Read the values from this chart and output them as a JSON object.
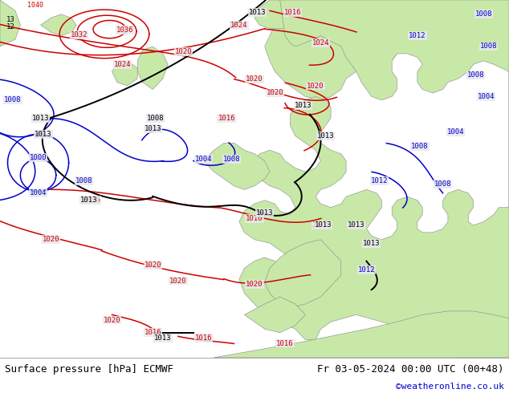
{
  "title_left": "Surface pressure [hPa] ECMWF",
  "title_right": "Fr 03-05-2024 00:00 UTC (00+48)",
  "credit": "©weatheronline.co.uk",
  "footer_bg": "#e8e8e8",
  "footer_text_color": "#000000",
  "credit_color": "#0000cc",
  "land_color": "#c8e8a8",
  "sea_color": "#e8e8ee",
  "coast_color": "#888888",
  "fig_width": 6.34,
  "fig_height": 4.9,
  "dpi": 100,
  "red_contours": {
    "color": "#cc0000",
    "lw": 1.1
  },
  "blue_contours": {
    "color": "#0000cc",
    "lw": 1.1
  },
  "black_contours": {
    "color": "#000000",
    "lw": 1.4
  }
}
